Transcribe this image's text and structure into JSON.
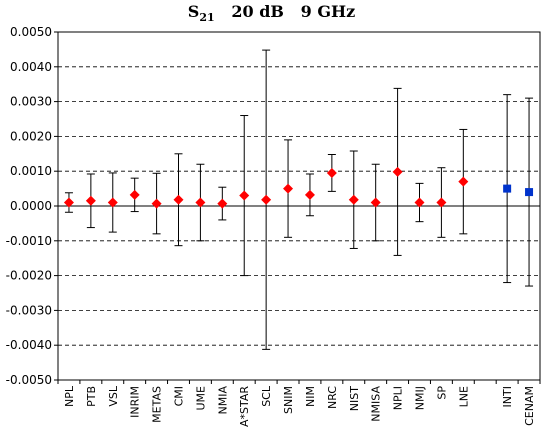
{
  "chart_data": {
    "type": "scatter",
    "title": {
      "symbol": "S",
      "subscript": "21",
      "rest": "   20 dB   9 GHz"
    },
    "xlabel": "",
    "ylabel": "",
    "ylim": [
      -0.005,
      0.005
    ],
    "y_ticks": [
      "0.0050",
      "0.0040",
      "0.0030",
      "0.0020",
      "0.0010",
      "0.0000",
      "-0.0010",
      "-0.0020",
      "-0.0030",
      "-0.0040",
      "-0.0050"
    ],
    "grid": "horizontal dashed",
    "legend": "none",
    "categories": [
      "NPL",
      "PTB",
      "VSL",
      "INRIM",
      "METAS",
      "CMI",
      "UME",
      "NMIA",
      "A*STAR",
      "SCL",
      "SNIM",
      "NIM",
      "NRC",
      "NIST",
      "NMISA",
      "NPLI",
      "NMIJ",
      "SP",
      "LNE",
      "",
      "INTI",
      "CENAM"
    ],
    "series": [
      {
        "marker": "diamond",
        "color": "#ff0000",
        "points": [
          {
            "x": "NPL",
            "y": 0.0001,
            "err": 0.00028
          },
          {
            "x": "PTB",
            "y": 0.00015,
            "err": 0.00077
          },
          {
            "x": "VSL",
            "y": 0.0001,
            "err": 0.00085
          },
          {
            "x": "INRIM",
            "y": 0.00032,
            "err": 0.00048
          },
          {
            "x": "METAS",
            "y": 7e-05,
            "err": 0.00087
          },
          {
            "x": "CMI",
            "y": 0.00018,
            "err": 0.00132
          },
          {
            "x": "UME",
            "y": 0.0001,
            "err": 0.0011
          },
          {
            "x": "NMIA",
            "y": 7e-05,
            "err": 0.00047
          },
          {
            "x": "A*STAR",
            "y": 0.0003,
            "err": 0.0023
          },
          {
            "x": "SCL",
            "y": 0.00018,
            "err": 0.0043
          },
          {
            "x": "SNIM",
            "y": 0.0005,
            "err": 0.0014
          },
          {
            "x": "NIM",
            "y": 0.00032,
            "err": 0.0006
          },
          {
            "x": "NRC",
            "y": 0.00095,
            "err": 0.00053
          },
          {
            "x": "NIST",
            "y": 0.00018,
            "err": 0.0014
          },
          {
            "x": "NMISA",
            "y": 0.0001,
            "err": 0.0011
          },
          {
            "x": "NPLI",
            "y": 0.00098,
            "err": 0.0024
          },
          {
            "x": "NMIJ",
            "y": 0.0001,
            "err": 0.00055
          },
          {
            "x": "SP",
            "y": 0.0001,
            "err": 0.001
          },
          {
            "x": "LNE",
            "y": 0.0007,
            "err": 0.0015
          }
        ]
      },
      {
        "marker": "square",
        "color": "#0033cc",
        "points": [
          {
            "x": "INTI",
            "y": 0.0005,
            "err": 0.0027
          },
          {
            "x": "CENAM",
            "y": 0.0004,
            "err": 0.0027
          }
        ]
      }
    ]
  }
}
